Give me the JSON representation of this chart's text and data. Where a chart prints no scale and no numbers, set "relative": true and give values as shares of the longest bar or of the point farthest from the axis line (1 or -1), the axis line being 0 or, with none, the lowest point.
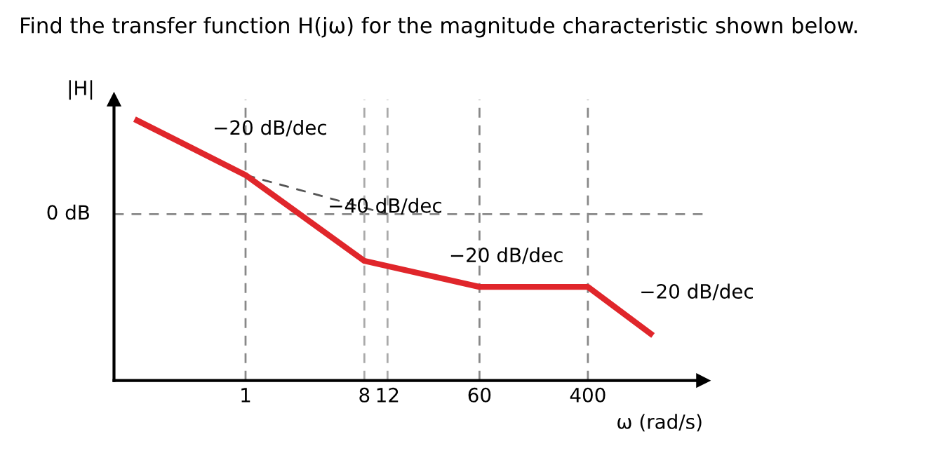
{
  "chart_data": {
    "type": "line",
    "title": "Find the transfer function H(jω) for the magnitude characteristic shown below.",
    "xlabel": "ω (rad/s)",
    "ylabel": "|H|",
    "relative": true,
    "log": "x",
    "x": [
      0.15,
      1,
      8,
      60,
      400,
      1200
    ],
    "xlim": [
      0.1,
      3000
    ],
    "xticks": [
      1,
      8,
      12,
      60,
      400
    ],
    "series": [
      {
        "color": "#e0262b",
        "values": [
          1,
          0.79,
          0.46,
          0.36,
          0.36,
          0.18
        ]
      },
      {
        "color": "#555555",
        "x": [
          1,
          12
        ],
        "values": [
          0.79,
          0.64
        ],
        "line_style": "dashed"
      }
    ],
    "ref_lines": [
      {
        "axis": "y",
        "value": 0.64,
        "label": "0 dB",
        "color": "#888888",
        "line_style": "dashed"
      },
      {
        "axis": "x",
        "value": 1,
        "color": "#888888",
        "line_style": "dashed"
      },
      {
        "axis": "x",
        "value": 8,
        "color": "#aaaaaa",
        "line_style": "dashed"
      },
      {
        "axis": "x",
        "value": 12,
        "color": "#aaaaaa",
        "line_style": "dashed"
      },
      {
        "axis": "x",
        "value": 60,
        "color": "#888888",
        "line_style": "dashed"
      },
      {
        "axis": "x",
        "value": 400,
        "color": "#888888",
        "line_style": "dashed"
      }
    ],
    "annotations": [
      {
        "text": "−20 dB/dec",
        "x": 0.4,
        "y": 0.9
      },
      {
        "text": "−40 dB/dec",
        "x": 3,
        "y": 0.6
      },
      {
        "text": "−20 dB/dec",
        "x": 25,
        "y": 0.41
      },
      {
        "text": "−20 dB/dec",
        "x": 700,
        "y": 0.27
      }
    ],
    "grid": false,
    "marker": "none",
    "line_style": "solid"
  }
}
